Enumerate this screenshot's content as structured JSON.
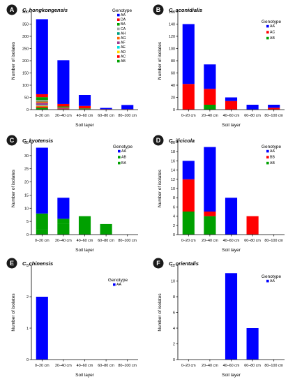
{
  "figure": {
    "colors": {
      "AA": "#0000ff",
      "DA": "#ff0000",
      "BA": "#00a000",
      "CA": "#a8a8a8",
      "AH": "#00a080",
      "AG": "#ff6600",
      "AF": "#9b3f8f",
      "AE": "#00e0e0",
      "AD": "#ffd700",
      "AC": "#ff0000",
      "AB": "#00a000",
      "BB": "#ff0000"
    }
  },
  "chart_data": [
    {
      "panel": "A",
      "type": "bar",
      "stacked": true,
      "title": "C. hongkongensis",
      "xlabel": "Soil layer",
      "ylabel": "Number of isolates",
      "categories": [
        "0–20 cm",
        "20–40 cm",
        "40–60 cm",
        "60–80 cm",
        "80–100 cm"
      ],
      "ylim": [
        0,
        400
      ],
      "yticks": [
        0,
        50,
        100,
        150,
        200,
        250,
        300,
        350,
        400
      ],
      "legend_title": "Genotype",
      "legend_position": "top-right",
      "legend": [
        "AA",
        "DA",
        "BA",
        "CA",
        "AH",
        "AG",
        "AF",
        "AE",
        "AD",
        "AC",
        "AB"
      ],
      "series": [
        {
          "name": "AB",
          "values": [
            8,
            2,
            0,
            0,
            0
          ]
        },
        {
          "name": "AC",
          "values": [
            5,
            2,
            0,
            0,
            0
          ]
        },
        {
          "name": "AD",
          "values": [
            3,
            0,
            0,
            0,
            0
          ]
        },
        {
          "name": "AE",
          "values": [
            2,
            0,
            0,
            0,
            0
          ]
        },
        {
          "name": "AF",
          "values": [
            10,
            3,
            2,
            0,
            0
          ]
        },
        {
          "name": "AG",
          "values": [
            5,
            2,
            0,
            0,
            0
          ]
        },
        {
          "name": "AH",
          "values": [
            2,
            0,
            0,
            0,
            0
          ]
        },
        {
          "name": "CA",
          "values": [
            4,
            0,
            0,
            0,
            0
          ]
        },
        {
          "name": "BA",
          "values": [
            12,
            4,
            3,
            0,
            0
          ]
        },
        {
          "name": "DA",
          "values": [
            12,
            10,
            10,
            2,
            2
          ]
        },
        {
          "name": "AA",
          "values": [
            307,
            179,
            45,
            5,
            17
          ]
        }
      ]
    },
    {
      "panel": "B",
      "type": "bar",
      "stacked": true,
      "title": "C. aconidialis",
      "xlabel": "Soil layer",
      "ylabel": "Number of isolates",
      "categories": [
        "0–20 cm",
        "20–40 cm",
        "40–60 cm",
        "60–80 cm",
        "80–100 cm"
      ],
      "ylim": [
        0,
        160
      ],
      "yticks": [
        0,
        20,
        40,
        60,
        80,
        100,
        120,
        140,
        160
      ],
      "legend_title": "Genotype",
      "legend_position": "top-right",
      "legend": [
        "AA",
        "AC",
        "AB"
      ],
      "series": [
        {
          "name": "AB",
          "values": [
            0,
            8,
            0,
            0,
            0
          ]
        },
        {
          "name": "AC",
          "values": [
            42,
            26,
            14,
            0,
            3
          ]
        },
        {
          "name": "AA",
          "values": [
            98,
            40,
            6,
            8,
            5
          ]
        }
      ]
    },
    {
      "panel": "C",
      "type": "bar",
      "stacked": true,
      "title": "C. kyotensis",
      "xlabel": "Soil layer",
      "ylabel": "Number of isolates",
      "categories": [
        "0–20 cm",
        "20–40 cm",
        "40–60 cm",
        "60–80 cm",
        "80–100 cm"
      ],
      "ylim": [
        0,
        35
      ],
      "yticks": [
        0,
        5,
        10,
        15,
        20,
        25,
        30,
        35
      ],
      "legend_title": "Genotype",
      "legend_position": "top-right",
      "legend": [
        "AA",
        "AB",
        "BA"
      ],
      "series": [
        {
          "name": "BA",
          "values": [
            2,
            4,
            0,
            0,
            0
          ]
        },
        {
          "name": "AB",
          "values": [
            6,
            2,
            7,
            4,
            0
          ]
        },
        {
          "name": "AA",
          "values": [
            25,
            8,
            0,
            0,
            0
          ]
        }
      ]
    },
    {
      "panel": "D",
      "type": "bar",
      "stacked": true,
      "title": "C. ilicicola",
      "xlabel": "Soil layer",
      "ylabel": "Number of isolates",
      "categories": [
        "0–20 cm",
        "20–40 cm",
        "40–60 cm",
        "60–80 cm",
        "80–100 cm"
      ],
      "ylim": [
        0,
        20
      ],
      "yticks": [
        0,
        2,
        4,
        6,
        8,
        10,
        12,
        14,
        16,
        18,
        20
      ],
      "legend_title": "Genotype",
      "legend_position": "top-right",
      "legend": [
        "AA",
        "BB",
        "AB"
      ],
      "series": [
        {
          "name": "AB",
          "values": [
            5,
            4,
            0,
            0,
            0
          ]
        },
        {
          "name": "BB",
          "values": [
            7,
            1,
            0,
            4,
            0
          ]
        },
        {
          "name": "AA",
          "values": [
            4,
            14,
            8,
            0,
            0
          ]
        }
      ]
    },
    {
      "panel": "E",
      "type": "bar",
      "stacked": true,
      "title": "C. chinensis",
      "xlabel": "Soil layer",
      "ylabel": "Number of isolates",
      "categories": [
        "0–20 cm",
        "20–40 cm",
        "40–60 cm",
        "60–80 cm",
        "80–100 cm"
      ],
      "ylim": [
        0,
        3
      ],
      "yticks": [
        0,
        1,
        2,
        3
      ],
      "legend_title": "Genotype",
      "legend_position": "top-right",
      "legend": [
        "AA"
      ],
      "series": [
        {
          "name": "AA",
          "values": [
            2,
            0,
            0,
            0,
            0
          ]
        }
      ]
    },
    {
      "panel": "F",
      "type": "bar",
      "stacked": true,
      "title": "C. orientalis",
      "xlabel": "Soil layer",
      "ylabel": "Number of isolates",
      "categories": [
        "0–20 cm",
        "20–40 cm",
        "40–60 cm",
        "60–80 cm",
        "80–100 cm"
      ],
      "ylim": [
        0,
        12
      ],
      "yticks": [
        0,
        2,
        4,
        6,
        8,
        10,
        12
      ],
      "legend_title": "Genotype",
      "legend_position": "top-right",
      "legend": [
        "AA"
      ],
      "series": [
        {
          "name": "AA",
          "values": [
            0,
            0,
            11,
            4,
            0
          ]
        }
      ]
    }
  ]
}
